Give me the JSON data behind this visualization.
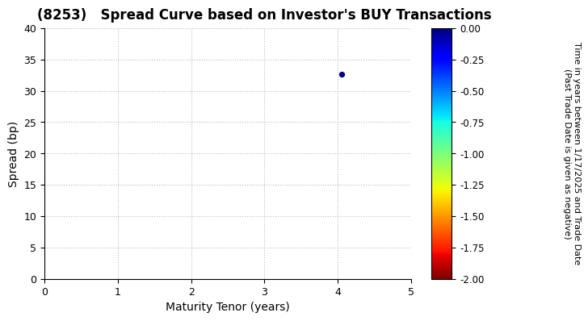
{
  "title": "(8253)   Spread Curve based on Investor's BUY Transactions",
  "xlabel": "Maturity Tenor (years)",
  "ylabel": "Spread (bp)",
  "xlim": [
    0,
    5
  ],
  "ylim": [
    0,
    40
  ],
  "xticks": [
    0,
    1,
    2,
    3,
    4,
    5
  ],
  "yticks": [
    0,
    5,
    10,
    15,
    20,
    25,
    30,
    35,
    40
  ],
  "scatter_x": [
    4.05
  ],
  "scatter_y": [
    32.7
  ],
  "scatter_color_value": [
    -0.02
  ],
  "cmap": "jet_r",
  "clim": [
    -2.0,
    0.0
  ],
  "colorbar_ticks": [
    0.0,
    -0.25,
    -0.5,
    -0.75,
    -1.0,
    -1.25,
    -1.5,
    -1.75,
    -2.0
  ],
  "colorbar_label": "Time in years between 1/17/2025 and Trade Date\n(Past Trade Date is given as negative)",
  "background_color": "#ffffff",
  "grid_color": "#aaaaaa",
  "title_fontsize": 12,
  "label_fontsize": 10,
  "tick_fontsize": 9,
  "colorbar_fontsize": 8.5
}
